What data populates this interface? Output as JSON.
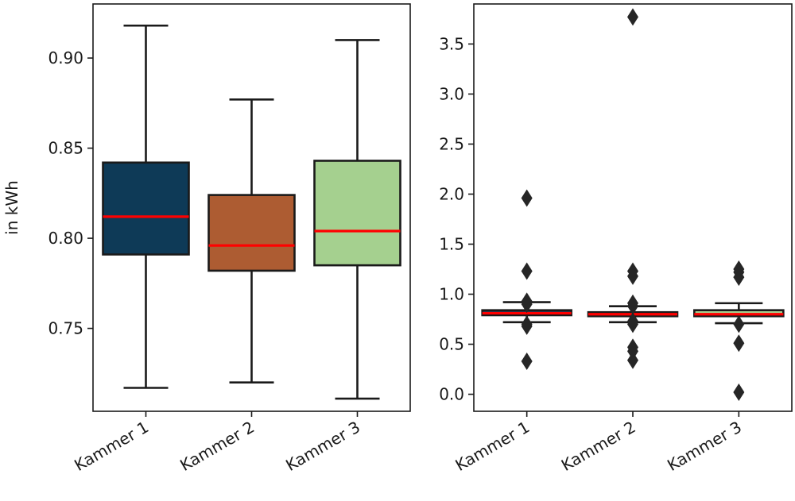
{
  "chart_data": [
    {
      "type": "box",
      "categories": [
        "Kammer 1",
        "Kammer 2",
        "Kammer 3"
      ],
      "ylabel": "in kWh",
      "xlabel": "",
      "ylim": [
        0.704,
        0.93
      ],
      "yticks": [
        0.75,
        0.8,
        0.85,
        0.9
      ],
      "ytick_labels": [
        "0.75",
        "0.80",
        "0.85",
        "0.90"
      ],
      "showfliers": false,
      "boxes": [
        {
          "whisker_low": 0.717,
          "q1": 0.791,
          "median": 0.812,
          "q3": 0.842,
          "whisker_high": 0.918,
          "color": "#0e3a57"
        },
        {
          "whisker_low": 0.72,
          "q1": 0.782,
          "median": 0.796,
          "q3": 0.824,
          "whisker_high": 0.877,
          "color": "#ad5c32"
        },
        {
          "whisker_low": 0.711,
          "q1": 0.785,
          "median": 0.804,
          "q3": 0.843,
          "whisker_high": 0.91,
          "color": "#a5d08f"
        }
      ],
      "median_color": "#ff0000"
    },
    {
      "type": "box",
      "categories": [
        "Kammer 1",
        "Kammer 2",
        "Kammer 3"
      ],
      "xlabel": "",
      "ylabel": "",
      "ylim": [
        -0.17,
        3.9
      ],
      "yticks": [
        0.0,
        0.5,
        1.0,
        1.5,
        2.0,
        2.5,
        3.0,
        3.5
      ],
      "ytick_labels": [
        "0.0",
        "0.5",
        "1.0",
        "1.5",
        "2.0",
        "2.5",
        "3.0",
        "3.5"
      ],
      "showfliers": true,
      "boxes": [
        {
          "whisker_low": 0.72,
          "q1": 0.79,
          "median": 0.81,
          "q3": 0.84,
          "whisker_high": 0.92,
          "color": "#0e3a57",
          "fliers": [
            1.96,
            1.23,
            0.93,
            0.9,
            0.7,
            0.68,
            0.33
          ]
        },
        {
          "whisker_low": 0.72,
          "q1": 0.78,
          "median": 0.8,
          "q3": 0.82,
          "whisker_high": 0.88,
          "color": "#ad5c32",
          "fliers": [
            3.77,
            1.23,
            1.18,
            0.91,
            0.88,
            0.73,
            0.7,
            0.47,
            0.43,
            0.34
          ]
        },
        {
          "whisker_low": 0.71,
          "q1": 0.78,
          "median": 0.8,
          "q3": 0.84,
          "whisker_high": 0.91,
          "color": "#a5d08f",
          "fliers": [
            1.25,
            1.22,
            1.17,
            0.7,
            0.51,
            0.02
          ]
        }
      ],
      "median_color": "#ff0000"
    }
  ]
}
